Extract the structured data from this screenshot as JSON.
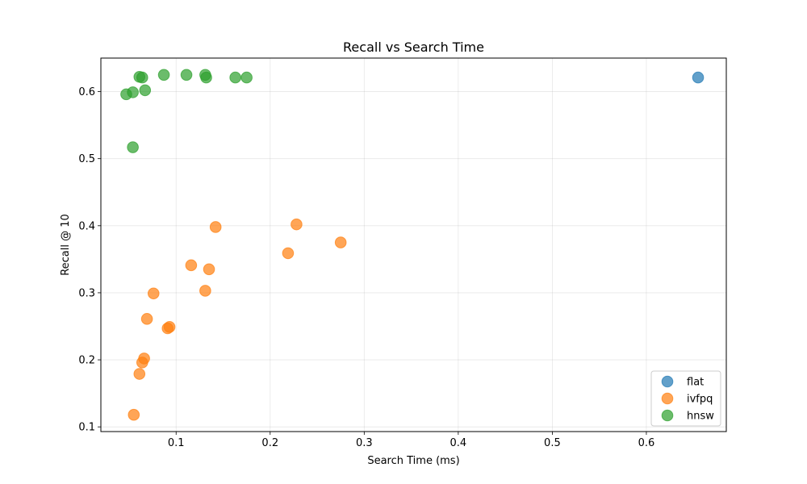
{
  "chart_data": {
    "type": "scatter",
    "title": "Recall vs Search Time",
    "xlabel": "Search Time (ms)",
    "ylabel": "Recall @ 10",
    "xlim": [
      0.02,
      0.685
    ],
    "ylim": [
      0.093,
      0.65
    ],
    "xticks": [
      0.1,
      0.2,
      0.3,
      0.4,
      0.5,
      0.6
    ],
    "xtick_labels": [
      "0.1",
      "0.2",
      "0.3",
      "0.4",
      "0.5",
      "0.6"
    ],
    "yticks": [
      0.1,
      0.2,
      0.3,
      0.4,
      0.5,
      0.6
    ],
    "ytick_labels": [
      "0.1",
      "0.2",
      "0.3",
      "0.4",
      "0.5",
      "0.6"
    ],
    "grid": true,
    "legend_position": "bottom-right",
    "series": [
      {
        "name": "flat",
        "color": "#1f77b4",
        "points": [
          [
            0.655,
            0.621
          ]
        ]
      },
      {
        "name": "ivfpq",
        "color": "#ff7f0e",
        "points": [
          [
            0.055,
            0.118
          ],
          [
            0.061,
            0.179
          ],
          [
            0.064,
            0.196
          ],
          [
            0.066,
            0.202
          ],
          [
            0.069,
            0.261
          ],
          [
            0.076,
            0.299
          ],
          [
            0.091,
            0.247
          ],
          [
            0.093,
            0.249
          ],
          [
            0.116,
            0.341
          ],
          [
            0.131,
            0.303
          ],
          [
            0.135,
            0.335
          ],
          [
            0.142,
            0.398
          ],
          [
            0.219,
            0.359
          ],
          [
            0.228,
            0.402
          ],
          [
            0.275,
            0.375
          ]
        ]
      },
      {
        "name": "hnsw",
        "color": "#2ca02c",
        "points": [
          [
            0.047,
            0.596
          ],
          [
            0.054,
            0.599
          ],
          [
            0.054,
            0.517
          ],
          [
            0.061,
            0.622
          ],
          [
            0.064,
            0.621
          ],
          [
            0.067,
            0.602
          ],
          [
            0.087,
            0.625
          ],
          [
            0.111,
            0.625
          ],
          [
            0.131,
            0.625
          ],
          [
            0.132,
            0.621
          ],
          [
            0.163,
            0.621
          ],
          [
            0.175,
            0.621
          ]
        ]
      }
    ]
  }
}
